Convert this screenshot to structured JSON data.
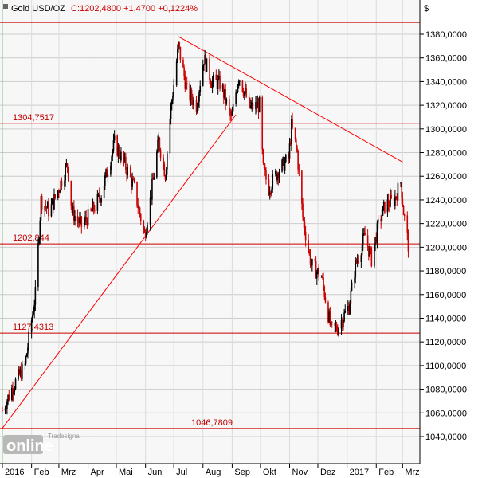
{
  "header": {
    "symbol": "Gold USD/OZ",
    "quote": "C:1202,4800 +1,4700 +0,1224%"
  },
  "currency_symbol": "$",
  "watermark": {
    "brand_top": "Tradesignal",
    "brand": "online"
  },
  "colors": {
    "up_candle": "#000000",
    "down_candle": "#cc0000",
    "level_line": "#cc0000",
    "trend_line": "#ff0000",
    "grid": "#cccccc",
    "header_red": "#cc0000"
  },
  "chart_data": {
    "type": "candlestick",
    "title": "Gold USD/OZ",
    "ylim": [
      1030,
      1400
    ],
    "y_ticks": [
      "1040,0000",
      "1060,0000",
      "1080,0000",
      "1100,0000",
      "1120,0000",
      "1140,0000",
      "1160,0000",
      "1180,0000",
      "1200,0000",
      "1220,0000",
      "1240,0000",
      "1260,0000",
      "1280,0000",
      "1300,0000",
      "1320,0000",
      "1340,0000",
      "1360,0000",
      "1380,0000"
    ],
    "x_labels": [
      "2016",
      "Feb",
      "Mrz",
      "Apr",
      "Mai",
      "Jun",
      "Jul",
      "Aug",
      "Sep",
      "Okt",
      "Nov",
      "Dez",
      "2017",
      "Feb",
      "Mrz"
    ],
    "horizontal_levels": [
      {
        "value": 1390,
        "label": ""
      },
      {
        "value": 1304.7517,
        "label": "1304,7517"
      },
      {
        "value": 1202.844,
        "label": "1202,844"
      },
      {
        "value": 1127.4313,
        "label": "1127,4313"
      },
      {
        "value": 1046.7809,
        "label": "1046,7809"
      }
    ],
    "trend_lines": [
      {
        "from": [
          "2016-01-01",
          1047
        ],
        "to": [
          "2016-09-05",
          1312
        ]
      },
      {
        "from": [
          "2016-07-06",
          1378
        ],
        "to": [
          "2017-03-01",
          1272
        ]
      }
    ],
    "path": [
      [
        "2016-01-01",
        1062
      ],
      [
        "2016-01-12",
        1082
      ],
      [
        "2016-01-25",
        1100
      ],
      [
        "2016-02-05",
        1160
      ],
      [
        "2016-02-11",
        1240
      ],
      [
        "2016-02-20",
        1230
      ],
      [
        "2016-03-01",
        1250
      ],
      [
        "2016-03-10",
        1270
      ],
      [
        "2016-03-15",
        1230
      ],
      [
        "2016-03-25",
        1218
      ],
      [
        "2016-04-05",
        1230
      ],
      [
        "2016-04-15",
        1245
      ],
      [
        "2016-04-29",
        1288
      ],
      [
        "2016-05-10",
        1270
      ],
      [
        "2016-05-20",
        1250
      ],
      [
        "2016-05-31",
        1210
      ],
      [
        "2016-06-07",
        1245
      ],
      [
        "2016-06-15",
        1290
      ],
      [
        "2016-06-22",
        1262
      ],
      [
        "2016-06-28",
        1318
      ],
      [
        "2016-07-06",
        1370
      ],
      [
        "2016-07-15",
        1332
      ],
      [
        "2016-07-25",
        1320
      ],
      [
        "2016-08-02",
        1360
      ],
      [
        "2016-08-10",
        1340
      ],
      [
        "2016-08-20",
        1338
      ],
      [
        "2016-08-31",
        1308
      ],
      [
        "2016-09-08",
        1345
      ],
      [
        "2016-09-20",
        1318
      ],
      [
        "2016-09-30",
        1320
      ],
      [
        "2016-10-04",
        1265
      ],
      [
        "2016-10-10",
        1250
      ],
      [
        "2016-10-20",
        1265
      ],
      [
        "2016-10-31",
        1275
      ],
      [
        "2016-11-03",
        1302
      ],
      [
        "2016-11-09",
        1280
      ],
      [
        "2016-11-15",
        1225
      ],
      [
        "2016-11-24",
        1185
      ],
      [
        "2016-12-05",
        1175
      ],
      [
        "2016-12-15",
        1130
      ],
      [
        "2016-12-22",
        1132
      ],
      [
        "2017-01-03",
        1150
      ],
      [
        "2017-01-10",
        1185
      ],
      [
        "2017-01-20",
        1210
      ],
      [
        "2017-01-27",
        1190
      ],
      [
        "2017-02-03",
        1218
      ],
      [
        "2017-02-10",
        1235
      ],
      [
        "2017-02-20",
        1240
      ],
      [
        "2017-02-27",
        1255
      ],
      [
        "2017-03-02",
        1230
      ],
      [
        "2017-03-07",
        1202
      ]
    ]
  }
}
